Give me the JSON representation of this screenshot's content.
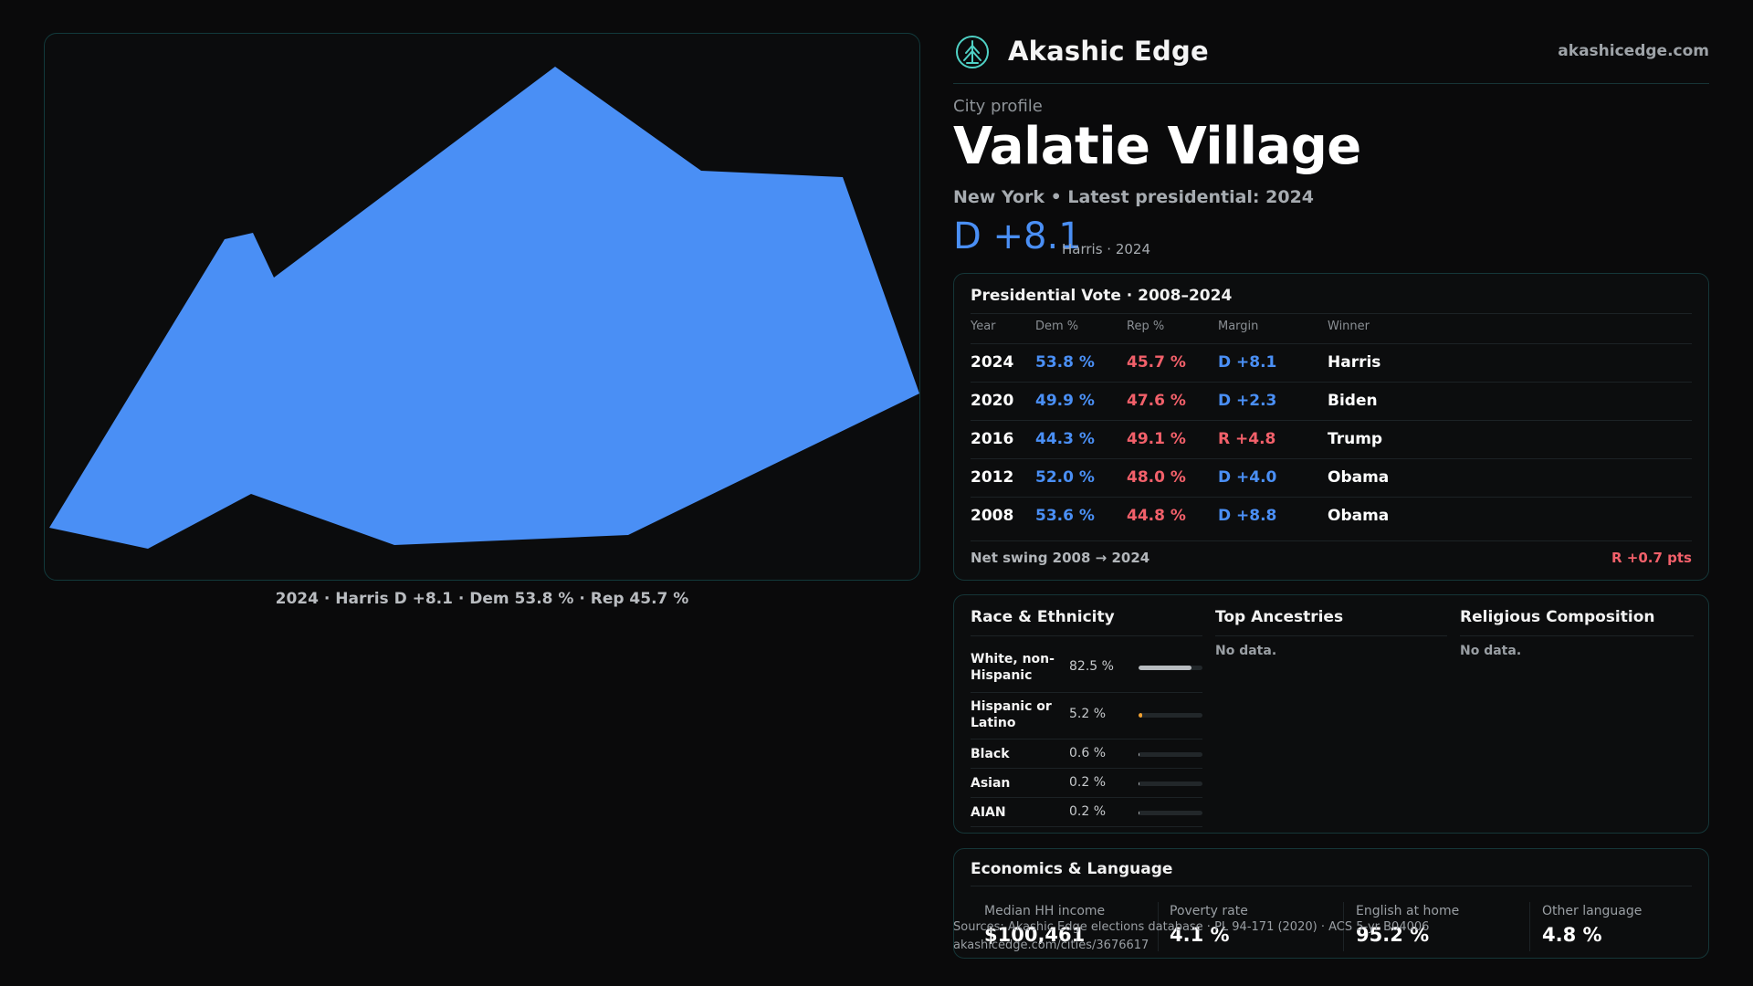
{
  "map": {
    "caption": "2024 · Harris D +8.1 · Dem 53.8 % · Rep 45.7 %",
    "fill_color": "#4a8ff5"
  },
  "brand": {
    "name": "Akashic Edge",
    "url": "akashicedge.com",
    "logo_icon": "tree-emblem-icon"
  },
  "city": {
    "eyebrow": "City profile",
    "name": "Valatie Village",
    "subtitle": "New York  • Latest presidential: 2024",
    "margin": "D +8.1",
    "margin_note": "Harris · 2024"
  },
  "vote": {
    "title": "Presidential Vote · 2008–2024",
    "headers": {
      "year": "Year",
      "dem": "Dem %",
      "rep": "Rep %",
      "margin": "Margin",
      "winner": "Winner"
    },
    "rows": [
      {
        "year": "2024",
        "dem": "53.8 %",
        "rep": "45.7 %",
        "margin": "D +8.1",
        "party": "D",
        "winner": "Harris"
      },
      {
        "year": "2020",
        "dem": "49.9 %",
        "rep": "47.6 %",
        "margin": "D +2.3",
        "party": "D",
        "winner": "Biden"
      },
      {
        "year": "2016",
        "dem": "44.3 %",
        "rep": "49.1 %",
        "margin": "R +4.8",
        "party": "R",
        "winner": "Trump"
      },
      {
        "year": "2012",
        "dem": "52.0 %",
        "rep": "48.0 %",
        "margin": "D +4.0",
        "party": "D",
        "winner": "Obama"
      },
      {
        "year": "2008",
        "dem": "53.6 %",
        "rep": "44.8 %",
        "margin": "D +8.8",
        "party": "D",
        "winner": "Obama"
      }
    ],
    "swing_label": "Net swing 2008 → 2024",
    "swing_value": "R +0.7 pts"
  },
  "demographics": {
    "race_title": "Race & Ethnicity",
    "race": [
      {
        "label": "White, non-\nHispanic",
        "pct": "82.5 %",
        "share": 0.825,
        "color": "#b8bcc0"
      },
      {
        "label": "Hispanic or\nLatino",
        "pct": "5.2 %",
        "share": 0.052,
        "color": "#f0a030"
      },
      {
        "label": "Black",
        "pct": "0.6 %",
        "share": 0.006,
        "color": "#b8bcc0"
      },
      {
        "label": "Asian",
        "pct": "0.2 %",
        "share": 0.002,
        "color": "#b8bcc0"
      },
      {
        "label": "AIAN",
        "pct": "0.2 %",
        "share": 0.002,
        "color": "#b8bcc0"
      }
    ],
    "ancestry_title": "Top Ancestries",
    "ancestry_empty": "No data.",
    "religion_title": "Religious Composition",
    "religion_empty": "No data."
  },
  "economics": {
    "title": "Economics & Language",
    "stats": [
      {
        "label": "Median HH income",
        "value": "$100,461"
      },
      {
        "label": "Poverty rate",
        "value": "4.1 %"
      },
      {
        "label": "English at home",
        "value": "95.2 %"
      },
      {
        "label": "Other language",
        "value": "4.8 %"
      }
    ]
  },
  "footer": {
    "source": "Sources: Akashic Edge elections database · PL 94-171 (2020) · ACS 5-yr B04006",
    "link": "akashicedge.com/cities/3676617"
  },
  "colors": {
    "dem": "#4a8ff5",
    "rep": "#f2606a",
    "accent": "#4fd1c5"
  }
}
